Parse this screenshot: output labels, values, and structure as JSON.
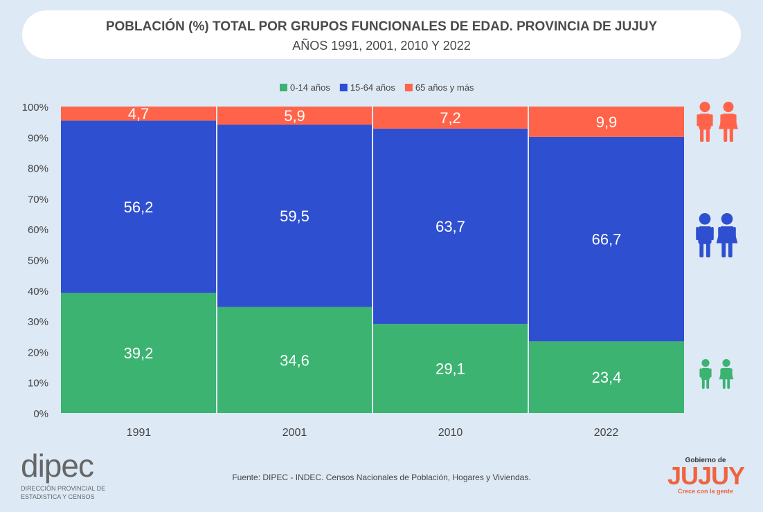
{
  "title": "POBLACIÓN (%) TOTAL POR GRUPOS FUNCIONALES DE EDAD. PROVINCIA DE JUJUY",
  "subtitle": "AÑOS 1991, 2001, 2010 Y 2022",
  "source": "Fuente: DIPEC - INDEC. Censos Nacionales de Población, Hogares y Viviendas.",
  "logos": {
    "dipec": "dipec",
    "dipec_sub1": "DIRECCIÓN PROVINCIAL DE",
    "dipec_sub2": "ESTADISTICA Y CENSOS",
    "jujuy_top": "Gobierno de",
    "jujuy": "JUJUY",
    "jujuy_bottom": "Crece con la gente"
  },
  "chart_data": {
    "type": "bar",
    "stacked": true,
    "percent": true,
    "categories": [
      "1991",
      "2001",
      "2010",
      "2022"
    ],
    "series": [
      {
        "name": "0-14 años",
        "color": "#3cb371",
        "values": [
          39.2,
          34.6,
          29.1,
          23.4
        ],
        "labels": [
          "39,2",
          "34,6",
          "29,1",
          "23,4"
        ],
        "icon": "children-icon"
      },
      {
        "name": "15-64 años",
        "color": "#2e4fcf",
        "values": [
          56.2,
          59.5,
          63.7,
          66.7
        ],
        "labels": [
          "56,2",
          "59,5",
          "63,7",
          "66,7"
        ],
        "icon": "adults-icon"
      },
      {
        "name": "65 años y más",
        "color": "#ff644a",
        "values": [
          4.7,
          5.9,
          7.2,
          9.9
        ],
        "labels": [
          "4,7",
          "5,9",
          "7,2",
          "9,9"
        ],
        "icon": "elderly-icon"
      }
    ],
    "ylim": [
      0,
      100
    ],
    "yticks": [
      "0%",
      "10%",
      "20%",
      "30%",
      "40%",
      "50%",
      "60%",
      "70%",
      "80%",
      "90%",
      "100%"
    ],
    "legend": "top",
    "grid": false
  }
}
